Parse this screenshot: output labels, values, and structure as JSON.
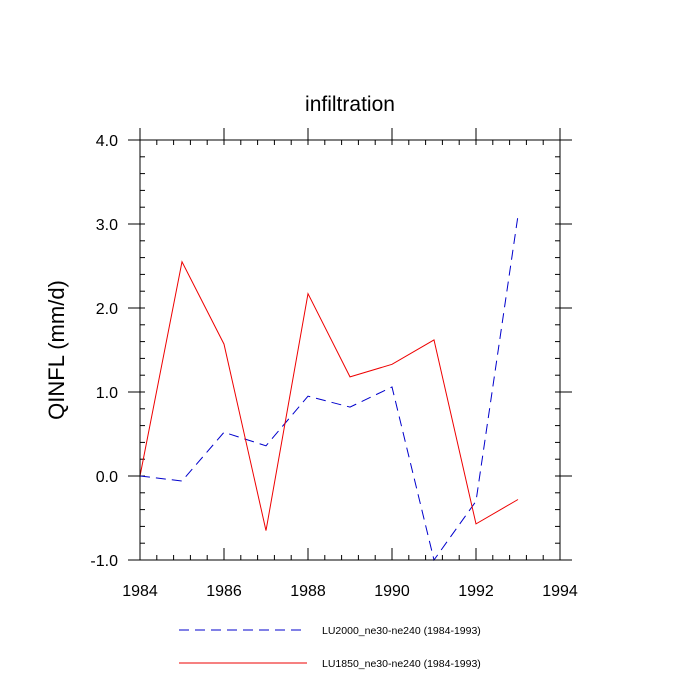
{
  "chart_data": {
    "type": "line",
    "title": "infiltration",
    "xlabel": "",
    "ylabel": "QINFL  (mm/d)",
    "xlim": [
      1984,
      1994
    ],
    "ylim": [
      -1.0,
      4.0
    ],
    "x_ticks": [
      1984,
      1986,
      1988,
      1990,
      1992,
      1994
    ],
    "x_tick_labels": [
      "1984",
      "1986",
      "1988",
      "1990",
      "1992",
      "1994"
    ],
    "y_ticks": [
      -1.0,
      0.0,
      1.0,
      2.0,
      3.0,
      4.0
    ],
    "y_tick_labels": [
      "-1.0",
      "0.0",
      "1.0",
      "2.0",
      "3.0",
      "4.0"
    ],
    "x": [
      1984,
      1985,
      1986,
      1987,
      1988,
      1989,
      1990,
      1991,
      1992,
      1993
    ],
    "series": [
      {
        "name": "LU2000_ne30-ne240 (1984-1993)",
        "color": "#0000cc",
        "dash": "dashed",
        "values": [
          0.0,
          -0.06,
          0.52,
          0.36,
          0.95,
          0.82,
          1.06,
          -1.0,
          -0.3,
          3.1
        ]
      },
      {
        "name": "LU1850_ne30-ne240 (1984-1993)",
        "color": "#ee0000",
        "dash": "solid",
        "values": [
          0.0,
          2.55,
          1.57,
          -0.65,
          2.17,
          1.18,
          1.33,
          1.62,
          -0.57,
          -0.28
        ]
      }
    ],
    "legend_position": "bottom"
  }
}
